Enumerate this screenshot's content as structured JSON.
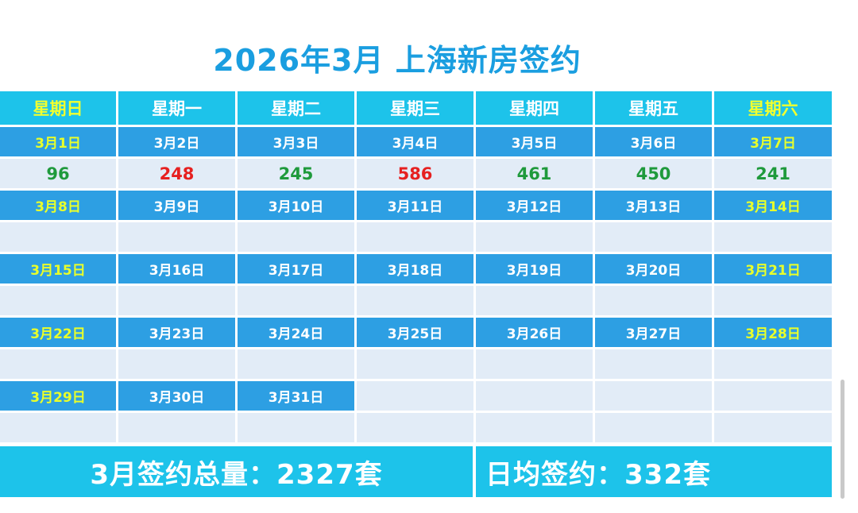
{
  "title": "2026年3月 上海新房签约",
  "weekdays": [
    "星期日",
    "星期一",
    "星期二",
    "星期三",
    "星期四",
    "星期五",
    "星期六"
  ],
  "weeks": [
    {
      "dates": [
        "3月1日",
        "3月2日",
        "3月3日",
        "3月4日",
        "3月5日",
        "3月6日",
        "3月7日"
      ],
      "values": [
        "96",
        "248",
        "245",
        "586",
        "461",
        "450",
        "241"
      ],
      "value_colors": [
        "green",
        "red",
        "green",
        "red",
        "green",
        "green",
        "green"
      ]
    },
    {
      "dates": [
        "3月8日",
        "3月9日",
        "3月10日",
        "3月11日",
        "3月12日",
        "3月13日",
        "3月14日"
      ],
      "values": [
        "",
        "",
        "",
        "",
        "",
        "",
        ""
      ]
    },
    {
      "dates": [
        "3月15日",
        "3月16日",
        "3月17日",
        "3月18日",
        "3月19日",
        "3月20日",
        "3月21日"
      ],
      "values": [
        "",
        "",
        "",
        "",
        "",
        "",
        ""
      ]
    },
    {
      "dates": [
        "3月22日",
        "3月23日",
        "3月24日",
        "3月25日",
        "3月26日",
        "3月27日",
        "3月28日"
      ],
      "values": [
        "",
        "",
        "",
        "",
        "",
        "",
        ""
      ]
    },
    {
      "dates": [
        "3月29日",
        "3月30日",
        "3月31日",
        "",
        "",
        "",
        ""
      ],
      "values": [
        "",
        "",
        "",
        "",
        "",
        "",
        ""
      ]
    }
  ],
  "footer": {
    "total_text": "3月签约总量：2327套",
    "average_text": "日均签约：332套"
  },
  "colors": {
    "title": "#1a9ee0",
    "header_bg": "#1dc3ea",
    "date_bg": "#2d9fe3",
    "value_bg": "#e2ecf7",
    "weekend_text": "#f2ff2e",
    "up_value": "#e62020",
    "normal_value": "#1f9a3c"
  }
}
